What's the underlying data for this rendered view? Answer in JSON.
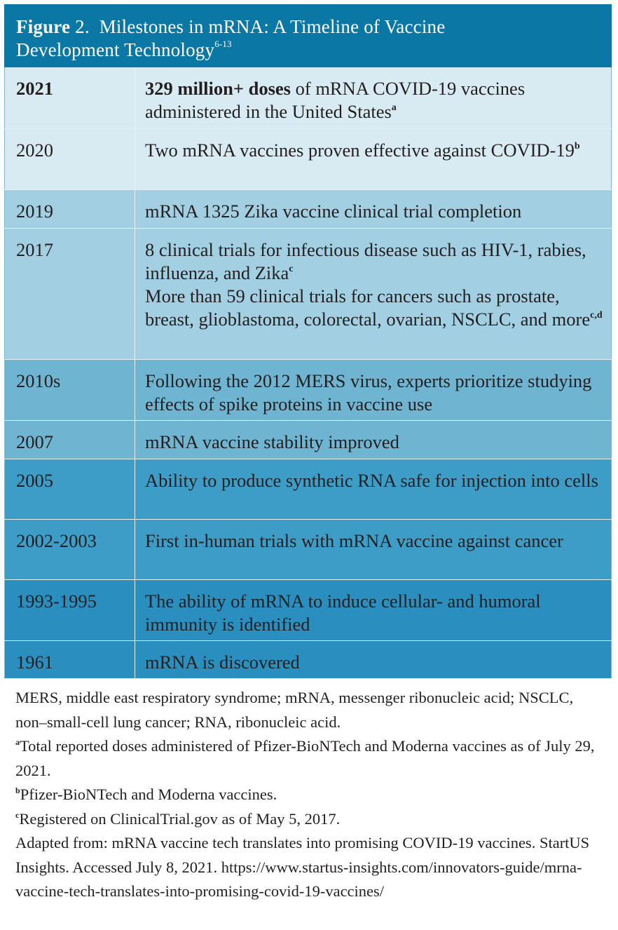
{
  "figure": {
    "label": "Figure",
    "number": "2.",
    "title_line1": "Milestones in mRNA: A Timeline of Vaccine",
    "title_line2": "Development Technology",
    "title_ref": "6-13"
  },
  "rows": [
    {
      "year": "2021",
      "bold_text": "329 million+ doses",
      "text": " of mRNA COVID-19 vaccines administered in the United States",
      "sup": "a",
      "bg": "#d8ebf3",
      "year_bold": true,
      "height": 87
    },
    {
      "year": "2020",
      "bold_text": "",
      "text": "Two mRNA vaccines proven effective against COVID-19",
      "sup": "b",
      "bg": "#d8ebf3",
      "year_bold": false,
      "height": 87
    },
    {
      "year": "2019",
      "bold_text": "",
      "text": "mRNA 1325 Zika vaccine clinical trial completion",
      "sup": "",
      "bg": "#a2cfe1",
      "year_bold": false,
      "height": 55
    },
    {
      "year": "2017",
      "bold_text": "",
      "text": "8 clinical trials for infectious disease such as HIV-1, rabies, influenza, and Zika",
      "sup": "c",
      "text2": "More than 59 clinical trials for cancers such as prostate, breast, glioblastoma, colorectal, ovarian, NSCLC, and more",
      "sup2": "c,d",
      "bg": "#a2cfe1",
      "year_bold": false,
      "height": 187
    },
    {
      "year": "2010s",
      "bold_text": "",
      "text": "Following the 2012 MERS virus, experts prioritize studying effects of spike proteins in vaccine use",
      "sup": "",
      "bg": "#6fb5d1",
      "year_bold": false,
      "height": 87
    },
    {
      "year": "2007",
      "bold_text": "",
      "text": "mRNA vaccine stability improved",
      "sup": "",
      "bg": "#6fb5d1",
      "year_bold": false,
      "height": 55
    },
    {
      "year": "2005",
      "bold_text": "",
      "text": "Ability to produce synthetic RNA safe for injection into cells",
      "sup": "",
      "bg": "#3d9dc6",
      "year_bold": false,
      "height": 86
    },
    {
      "year": "2002-2003",
      "bold_text": "",
      "text": "First in-human trials with mRNA vaccine against cancer",
      "sup": "",
      "bg": "#3d9dc6",
      "year_bold": false,
      "height": 86
    },
    {
      "year": "1993-1995",
      "bold_text": "",
      "text": "The ability of mRNA to induce cellular- and humoral immunity is identified",
      "sup": "",
      "bg": "#2a8fbe",
      "year_bold": false,
      "height": 87
    },
    {
      "year": "1961",
      "bold_text": "",
      "text": "mRNA is discovered",
      "sup": "",
      "bg": "#2a8fbe",
      "year_bold": false,
      "height": 54
    }
  ],
  "footnotes": {
    "abbreviations": "MERS, middle east respiratory syndrome; mRNA, messenger ribonucleic acid; NSCLC, non–small-cell lung cancer; RNA, ribonucleic acid.",
    "note_a_mark": "a",
    "note_a": "Total reported doses administered of Pfizer-BioNTech and Moderna vaccines as of July 29, 2021.",
    "note_b_mark": "b",
    "note_b": "Pfizer-BioNTech and Moderna vaccines.",
    "note_c_mark": "c",
    "note_c": "Registered on ClinicalTrial.gov as of May 5, 2017.",
    "source": "Adapted from: mRNA vaccine tech translates into promising COVID-19 vaccines. StartUS Insights. Accessed July 8, 2021. https://www.startus-insights.com/innovators-guide/mrna-vaccine-tech-translates-into-promising-covid-19-vaccines/"
  }
}
